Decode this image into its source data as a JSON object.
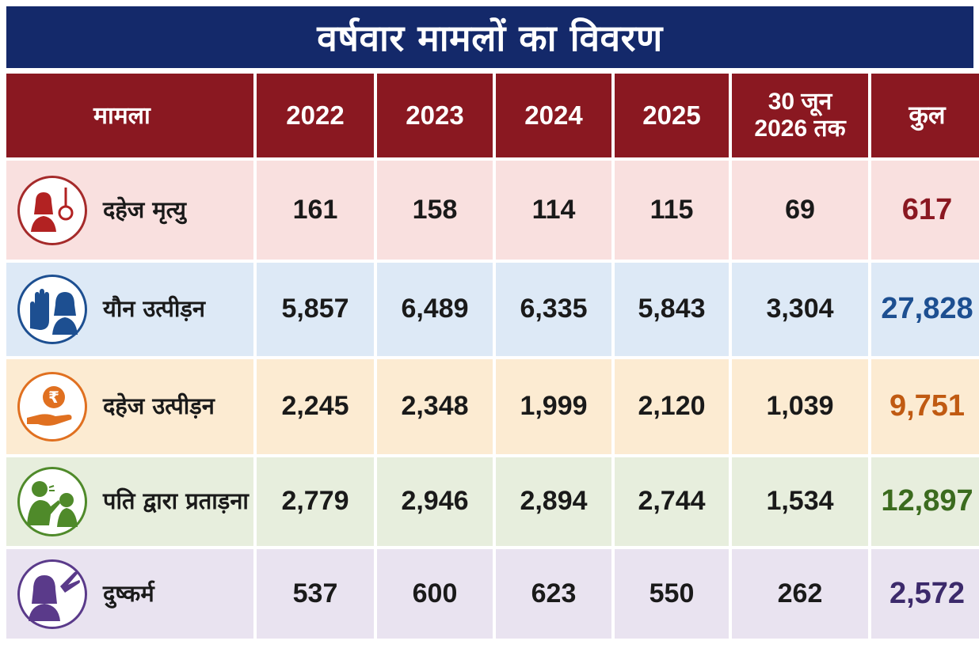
{
  "title": "वर्षवार मामलों का विवरण",
  "chart_data": {
    "type": "table",
    "title": "वर्षवार मामलों का विवरण",
    "columns": [
      "मामला",
      "2022",
      "2023",
      "2024",
      "2025",
      "30 जून 2026 तक",
      "कुल"
    ],
    "column_lines": {
      "h5_line1": "30 जून",
      "h5_line2": "2026 तक"
    },
    "rows": [
      {
        "label": "दहेज मृत्यु",
        "icon": "noose-woman-icon",
        "values": [
          "161",
          "158",
          "114",
          "115",
          "69"
        ],
        "total": "617",
        "total_color": "#8a1821",
        "icon_color": "#a52a2a",
        "bg": "#f9e0df"
      },
      {
        "label": "यौन उत्पीड़न",
        "icon": "stop-hand-woman-icon",
        "values": [
          "5,857",
          "6,489",
          "6,335",
          "5,843",
          "3,304"
        ],
        "total": "27,828",
        "total_color": "#1d4f91",
        "icon_color": "#1d4f91",
        "bg": "#dde9f6"
      },
      {
        "label": "दहेज उत्पीड़न",
        "icon": "rupee-hand-icon",
        "values": [
          "2,245",
          "2,348",
          "1,999",
          "2,120",
          "1,039"
        ],
        "total": "9,751",
        "total_color": "#c05a12",
        "icon_color": "#e07020",
        "bg": "#fcebd2"
      },
      {
        "label": "पति द्वारा प्रताड़ना",
        "icon": "man-shouting-woman-icon",
        "values": [
          "2,779",
          "2,946",
          "2,894",
          "2,744",
          "1,534"
        ],
        "total": "12,897",
        "total_color": "#3b6b1e",
        "icon_color": "#4f8a2a",
        "bg": "#e7eedd"
      },
      {
        "label": "दुष्कर्म",
        "icon": "woman-covering-face-hand-icon",
        "values": [
          "537",
          "600",
          "623",
          "550",
          "262"
        ],
        "total": "2,572",
        "total_color": "#3c2a6b",
        "icon_color": "#5a3a8a",
        "bg": "#e9e3f0"
      }
    ]
  },
  "colors": {
    "title_bg": "#14296a",
    "header_bg": "#8a1821"
  }
}
